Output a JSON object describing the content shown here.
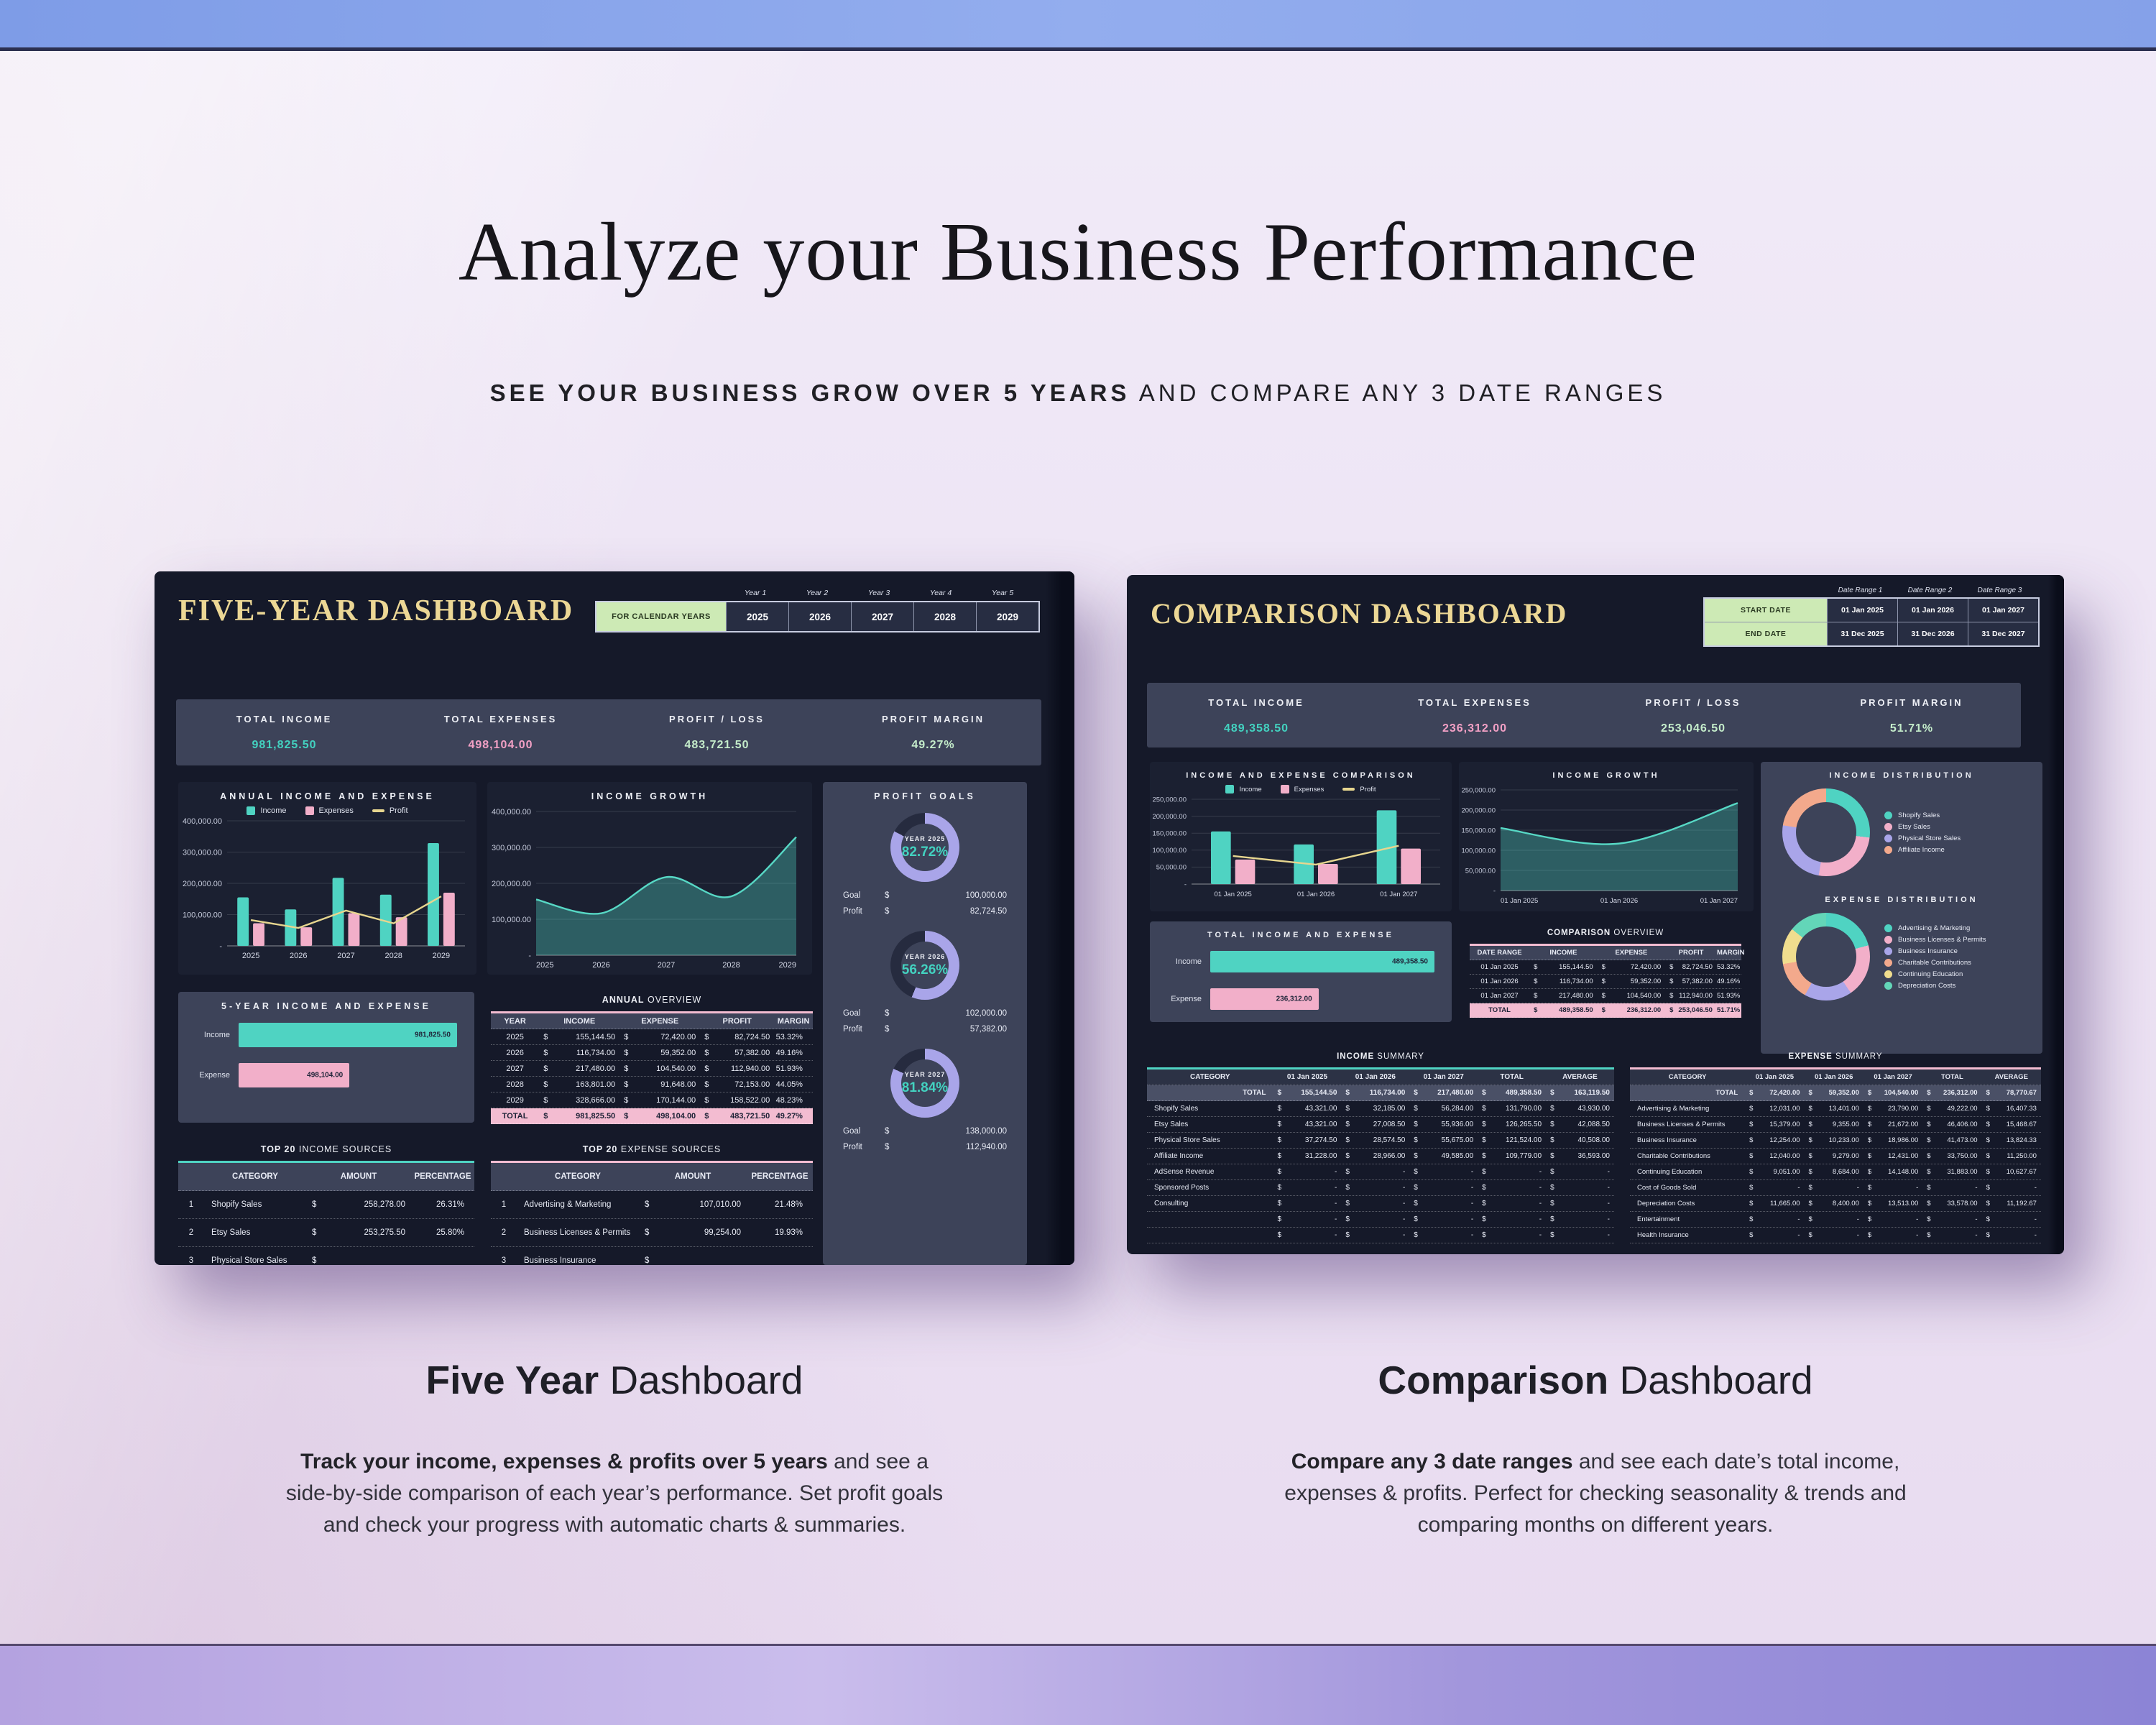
{
  "currency": "$",
  "colors": {
    "teal": "#4fd3c2",
    "pink": "#f2afc9",
    "yellow": "#e7d68f",
    "lavender": "#a9a5e9",
    "salmon": "#f3a98c",
    "mint": "#63d6b8",
    "gold": "#ecd795",
    "green_button": "#cdeab5",
    "light_green": "#c4ecca",
    "kpi_band": "#3d4359",
    "card": "#151929",
    "panel": "#1b2031"
  },
  "page": {
    "title": "Analyze your Business Performance",
    "subtitle": {
      "bold": "SEE YOUR BUSINESS GROW OVER 5 YEARS",
      "rest": " AND COMPARE ANY 3 DATE RANGES"
    }
  },
  "five_year": {
    "title": "FIVE-YEAR DASHBOARD",
    "selector": {
      "year_labels": [
        "Year 1",
        "Year 2",
        "Year 3",
        "Year 4",
        "Year 5"
      ],
      "button": "FOR CALENDAR YEARS",
      "years": [
        "2025",
        "2026",
        "2027",
        "2028",
        "2029"
      ]
    },
    "kpis": [
      {
        "label": "TOTAL INCOME",
        "value": "981,825.50",
        "color": "#43d2c0"
      },
      {
        "label": "TOTAL EXPENSES",
        "value": "498,104.00",
        "color": "#f2a0c5"
      },
      {
        "label": "PROFIT / LOSS",
        "value": "483,721.50",
        "color": "#c4ecca"
      },
      {
        "label": "PROFIT MARGIN",
        "value": "49.27%",
        "color": "#c4ecca"
      }
    ],
    "bar_chart": {
      "title": "ANNUAL INCOME AND EXPENSE",
      "legend": [
        "Income",
        "Expenses",
        "Profit"
      ],
      "categories": [
        "2025",
        "2026",
        "2027",
        "2028",
        "2029"
      ],
      "income": [
        155144.5,
        116734,
        217480,
        163801,
        328666
      ],
      "expenses": [
        72420,
        59352,
        104540,
        91648,
        170144
      ],
      "profit": [
        82724.5,
        57382,
        112940,
        72153,
        158522
      ],
      "yticks": [
        "400,000.00",
        "300,000.00",
        "200,000.00",
        "100,000.00",
        "-"
      ],
      "ymax": 400000
    },
    "growth_chart": {
      "title": "INCOME GROWTH",
      "categories": [
        "2025",
        "2026",
        "2027",
        "2028",
        "2029"
      ],
      "values": [
        155144.5,
        116734,
        217480,
        163801,
        328666
      ],
      "yticks": [
        "400,000.00",
        "300,000.00",
        "200,000.00",
        "100,000.00",
        "-"
      ],
      "ymax": 400000
    },
    "profit_goals": {
      "title": "PROFIT GOALS",
      "goal_label": "Goal",
      "profit_label": "Profit",
      "items": [
        {
          "year": "YEAR 2025",
          "pct": "82.72%",
          "pct_num": 82.72,
          "goal": "100,000.00",
          "profit": "82,724.50"
        },
        {
          "year": "YEAR 2026",
          "pct": "56.26%",
          "pct_num": 56.26,
          "goal": "102,000.00",
          "profit": "57,382.00"
        },
        {
          "year": "YEAR 2027",
          "pct": "81.84%",
          "pct_num": 81.84,
          "goal": "138,000.00",
          "profit": "112,940.00"
        }
      ]
    },
    "five_year_bars": {
      "title": "5-YEAR INCOME AND EXPENSE",
      "bars": [
        {
          "label": "Income",
          "value": "981,825.50",
          "num": 981825.5,
          "color": "teal"
        },
        {
          "label": "Expense",
          "value": "498,104.00",
          "num": 498104,
          "color": "pink"
        }
      ]
    },
    "annual_overview": {
      "title_bold": "ANNUAL",
      "title_rest": " OVERVIEW",
      "headers": [
        "YEAR",
        "INCOME",
        "EXPENSE",
        "PROFIT",
        "MARGIN"
      ],
      "rows": [
        [
          "2025",
          "155,144.50",
          "72,420.00",
          "82,724.50",
          "53.32%"
        ],
        [
          "2026",
          "116,734.00",
          "59,352.00",
          "57,382.00",
          "49.16%"
        ],
        [
          "2027",
          "217,480.00",
          "104,540.00",
          "112,940.00",
          "51.93%"
        ],
        [
          "2028",
          "163,801.00",
          "91,648.00",
          "72,153.00",
          "44.05%"
        ],
        [
          "2029",
          "328,666.00",
          "170,144.00",
          "158,522.00",
          "48.23%"
        ]
      ],
      "total": [
        "TOTAL",
        "981,825.50",
        "498,104.00",
        "483,721.50",
        "49.27%"
      ]
    },
    "top_income": {
      "title_bold": "TOP 20",
      "title_rest": " INCOME SOURCES",
      "headers": [
        "CATEGORY",
        "AMOUNT",
        "PERCENTAGE"
      ],
      "rows": [
        [
          "1",
          "Shopify Sales",
          "258,278.00",
          "26.31%"
        ],
        [
          "2",
          "Etsy Sales",
          "253,275.50",
          "25.80%"
        ],
        [
          "3",
          "Physical Store Sales",
          "",
          ""
        ]
      ]
    },
    "top_expense": {
      "title_bold": "TOP 20",
      "title_rest": " EXPENSE SOURCES",
      "headers": [
        "CATEGORY",
        "AMOUNT",
        "PERCENTAGE"
      ],
      "rows": [
        [
          "1",
          "Advertising & Marketing",
          "107,010.00",
          "21.48%"
        ],
        [
          "2",
          "Business Licenses & Permits",
          "99,254.00",
          "19.93%"
        ],
        [
          "3",
          "Business Insurance",
          "",
          ""
        ]
      ]
    }
  },
  "comparison": {
    "title": "COMPARISON DASHBOARD",
    "selector": {
      "range_labels": [
        "Date Range 1",
        "Date Range 2",
        "Date Range 3"
      ],
      "rows": [
        {
          "label": "START DATE",
          "values": [
            "01 Jan 2025",
            "01 Jan 2026",
            "01 Jan 2027"
          ]
        },
        {
          "label": "END DATE",
          "values": [
            "31 Dec 2025",
            "31 Dec 2026",
            "31 Dec 2027"
          ]
        }
      ]
    },
    "kpis": [
      {
        "label": "TOTAL INCOME",
        "value": "489,358.50",
        "color": "#43d2c0"
      },
      {
        "label": "TOTAL EXPENSES",
        "value": "236,312.00",
        "color": "#f2a0c5"
      },
      {
        "label": "PROFIT / LOSS",
        "value": "253,046.50",
        "color": "#c4ecca"
      },
      {
        "label": "PROFIT MARGIN",
        "value": "51.71%",
        "color": "#c4ecca"
      }
    ],
    "bar_chart": {
      "title": "INCOME AND EXPENSE COMPARISON",
      "legend": [
        "Income",
        "Expenses",
        "Profit"
      ],
      "categories": [
        "01 Jan 2025",
        "01 Jan 2026",
        "01 Jan 2027"
      ],
      "income": [
        155144.5,
        116734,
        217480
      ],
      "expenses": [
        72420,
        59352,
        104540
      ],
      "profit": [
        82724.5,
        57382,
        112940
      ],
      "yticks": [
        "250,000.00",
        "200,000.00",
        "150,000.00",
        "100,000.00",
        "50,000.00",
        "-"
      ],
      "ymax": 250000
    },
    "growth_chart": {
      "title": "INCOME GROWTH",
      "categories": [
        "01 Jan 2025",
        "01 Jan 2026",
        "01 Jan 2027"
      ],
      "values": [
        155144.5,
        116734,
        217480
      ],
      "yticks": [
        "250,000.00",
        "200,000.00",
        "150,000.00",
        "100,000.00",
        "50,000.00",
        "-"
      ],
      "ymax": 250000
    },
    "income_distribution": {
      "title": "INCOME DISTRIBUTION",
      "segments": [
        {
          "label": "Shopify Sales",
          "pct": 26.93,
          "color": "#4fd3c2"
        },
        {
          "label": "Etsy Sales",
          "pct": 25.8,
          "color": "#f2afc9"
        },
        {
          "label": "Physical Store Sales",
          "pct": 24.84,
          "color": "#a9a5e9"
        },
        {
          "label": "Affiliate Income",
          "pct": 22.43,
          "color": "#f3a98c"
        }
      ]
    },
    "expense_distribution": {
      "title": "EXPENSE DISTRIBUTION",
      "segments": [
        {
          "label": "Advertising & Marketing",
          "pct": 20.83,
          "color": "#4fd3c2"
        },
        {
          "label": "Business Licenses & Permits",
          "pct": 19.64,
          "color": "#f2afc9"
        },
        {
          "label": "Business Insurance",
          "pct": 17.55,
          "color": "#a9a5e9"
        },
        {
          "label": "Charitable Contributions",
          "pct": 14.28,
          "color": "#f3a98c"
        },
        {
          "label": "Continuing Education",
          "pct": 13.49,
          "color": "#f0dd8e"
        },
        {
          "label": "Depreciation Costs",
          "pct": 14.21,
          "color": "#63d6b8"
        }
      ]
    },
    "total_bars": {
      "title": "TOTAL INCOME AND EXPENSE",
      "bars": [
        {
          "label": "Income",
          "value": "489,358.50",
          "num": 489358.5,
          "color": "teal"
        },
        {
          "label": "Expense",
          "value": "236,312.00",
          "num": 236312,
          "color": "pink"
        }
      ]
    },
    "comparison_overview": {
      "title_bold": "COMPARISON",
      "title_rest": " OVERVIEW",
      "headers": [
        "DATE RANGE",
        "INCOME",
        "EXPENSE",
        "PROFIT",
        "MARGIN"
      ],
      "rows": [
        [
          "01 Jan 2025",
          "155,144.50",
          "72,420.00",
          "82,724.50",
          "53.32%"
        ],
        [
          "01 Jan 2026",
          "116,734.00",
          "59,352.00",
          "57,382.00",
          "49.16%"
        ],
        [
          "01 Jan 2027",
          "217,480.00",
          "104,540.00",
          "112,940.00",
          "51.93%"
        ]
      ],
      "total": [
        "TOTAL",
        "489,358.50",
        "236,312.00",
        "253,046.50",
        "51.71%"
      ]
    },
    "income_summary": {
      "title_bold": "INCOME",
      "title_rest": " SUMMARY",
      "headers": [
        "CATEGORY",
        "01 Jan 2025",
        "01 Jan 2026",
        "01 Jan 2027",
        "TOTAL",
        "AVERAGE"
      ],
      "total": [
        "TOTAL",
        "155,144.50",
        "116,734.00",
        "217,480.00",
        "489,358.50",
        "163,119.50"
      ],
      "rows": [
        [
          "Shopify Sales",
          "43,321.00",
          "32,185.00",
          "56,284.00",
          "131,790.00",
          "43,930.00"
        ],
        [
          "Etsy Sales",
          "43,321.00",
          "27,008.50",
          "55,936.00",
          "126,265.50",
          "42,088.50"
        ],
        [
          "Physical Store Sales",
          "37,274.50",
          "28,574.50",
          "55,675.00",
          "121,524.00",
          "40,508.00"
        ],
        [
          "Affiliate Income",
          "31,228.00",
          "28,966.00",
          "49,585.00",
          "109,779.00",
          "36,593.00"
        ],
        [
          "AdSense Revenue",
          "-",
          "-",
          "-",
          "-",
          "-"
        ],
        [
          "Sponsored Posts",
          "-",
          "-",
          "-",
          "-",
          "-"
        ],
        [
          "Consulting",
          "-",
          "-",
          "-",
          "-",
          "-"
        ],
        [
          "",
          "-",
          "-",
          "-",
          "-",
          "-"
        ],
        [
          "",
          "-",
          "-",
          "-",
          "-",
          "-"
        ]
      ]
    },
    "expense_summary": {
      "title_bold": "EXPENSE",
      "title_rest": " SUMMARY",
      "headers": [
        "CATEGORY",
        "01 Jan 2025",
        "01 Jan 2026",
        "01 Jan 2027",
        "TOTAL",
        "AVERAGE"
      ],
      "total": [
        "TOTAL",
        "72,420.00",
        "59,352.00",
        "104,540.00",
        "236,312.00",
        "78,770.67"
      ],
      "rows": [
        [
          "Advertising & Marketing",
          "12,031.00",
          "13,401.00",
          "23,790.00",
          "49,222.00",
          "16,407.33"
        ],
        [
          "Business Licenses & Permits",
          "15,379.00",
          "9,355.00",
          "21,672.00",
          "46,406.00",
          "15,468.67"
        ],
        [
          "Business Insurance",
          "12,254.00",
          "10,233.00",
          "18,986.00",
          "41,473.00",
          "13,824.33"
        ],
        [
          "Charitable Contributions",
          "12,040.00",
          "9,279.00",
          "12,431.00",
          "33,750.00",
          "11,250.00"
        ],
        [
          "Continuing Education",
          "9,051.00",
          "8,684.00",
          "14,148.00",
          "31,883.00",
          "10,627.67"
        ],
        [
          "Cost of Goods Sold",
          "-",
          "-",
          "-",
          "-",
          "-"
        ],
        [
          "Depreciation Costs",
          "11,665.00",
          "8,400.00",
          "13,513.00",
          "33,578.00",
          "11,192.67"
        ],
        [
          "Entertainment",
          "-",
          "-",
          "-",
          "-",
          "-"
        ],
        [
          "Health Insurance",
          "-",
          "-",
          "-",
          "-",
          "-"
        ]
      ]
    }
  },
  "captions": {
    "left": {
      "title_bold": "Five Year",
      "title_rest": " Dashboard",
      "body_bold": "Track your income, expenses & profits over 5 years",
      "body_rest": " and see a side-by-side comparison of each year’s performance. Set profit goals and check your progress with automatic charts & summaries."
    },
    "right": {
      "title_bold": "Comparison",
      "title_rest": " Dashboard",
      "body_bold": "Compare any 3 date ranges",
      "body_rest": " and see each date’s total income, expenses & profits. Perfect for checking seasonality & trends and comparing months on different years."
    }
  },
  "chart_data": [
    {
      "type": "bar",
      "title": "ANNUAL INCOME AND EXPENSE",
      "categories": [
        "2025",
        "2026",
        "2027",
        "2028",
        "2029"
      ],
      "series": [
        {
          "name": "Income",
          "values": [
            155144.5,
            116734,
            217480,
            163801,
            328666
          ]
        },
        {
          "name": "Expenses",
          "values": [
            72420,
            59352,
            104540,
            91648,
            170144
          ]
        },
        {
          "name": "Profit",
          "values": [
            82724.5,
            57382,
            112940,
            72153,
            158522
          ]
        }
      ],
      "ylim": [
        0,
        400000
      ]
    },
    {
      "type": "area",
      "title": "INCOME GROWTH (5-year)",
      "categories": [
        "2025",
        "2026",
        "2027",
        "2028",
        "2029"
      ],
      "values": [
        155144.5,
        116734,
        217480,
        163801,
        328666
      ],
      "ylim": [
        0,
        400000
      ]
    },
    {
      "type": "bar",
      "title": "5-YEAR INCOME AND EXPENSE",
      "categories": [
        "Income",
        "Expense"
      ],
      "values": [
        981825.5,
        498104
      ]
    },
    {
      "type": "pie",
      "title": "PROFIT GOALS",
      "categories": [
        "YEAR 2025",
        "YEAR 2026",
        "YEAR 2027"
      ],
      "values": [
        82.72,
        56.26,
        81.84
      ],
      "goals": [
        100000,
        102000,
        138000
      ],
      "profits": [
        82724.5,
        57382,
        112940
      ]
    },
    {
      "type": "bar",
      "title": "INCOME AND EXPENSE COMPARISON",
      "categories": [
        "01 Jan 2025",
        "01 Jan 2026",
        "01 Jan 2027"
      ],
      "series": [
        {
          "name": "Income",
          "values": [
            155144.5,
            116734,
            217480
          ]
        },
        {
          "name": "Expenses",
          "values": [
            72420,
            59352,
            104540
          ]
        },
        {
          "name": "Profit",
          "values": [
            82724.5,
            57382,
            112940
          ]
        }
      ],
      "ylim": [
        0,
        250000
      ]
    },
    {
      "type": "area",
      "title": "INCOME GROWTH (comparison)",
      "categories": [
        "01 Jan 2025",
        "01 Jan 2026",
        "01 Jan 2027"
      ],
      "values": [
        155144.5,
        116734,
        217480
      ],
      "ylim": [
        0,
        250000
      ]
    },
    {
      "type": "pie",
      "title": "INCOME DISTRIBUTION",
      "categories": [
        "Shopify Sales",
        "Etsy Sales",
        "Physical Store Sales",
        "Affiliate Income"
      ],
      "values": [
        131790,
        126265.5,
        121524,
        109779
      ]
    },
    {
      "type": "pie",
      "title": "EXPENSE DISTRIBUTION",
      "categories": [
        "Advertising & Marketing",
        "Business Licenses & Permits",
        "Business Insurance",
        "Charitable Contributions",
        "Continuing Education",
        "Depreciation Costs"
      ],
      "values": [
        49222,
        46406,
        41473,
        33750,
        31883,
        33578
      ]
    },
    {
      "type": "bar",
      "title": "TOTAL INCOME AND EXPENSE",
      "categories": [
        "Income",
        "Expense"
      ],
      "values": [
        489358.5,
        236312
      ]
    }
  ]
}
